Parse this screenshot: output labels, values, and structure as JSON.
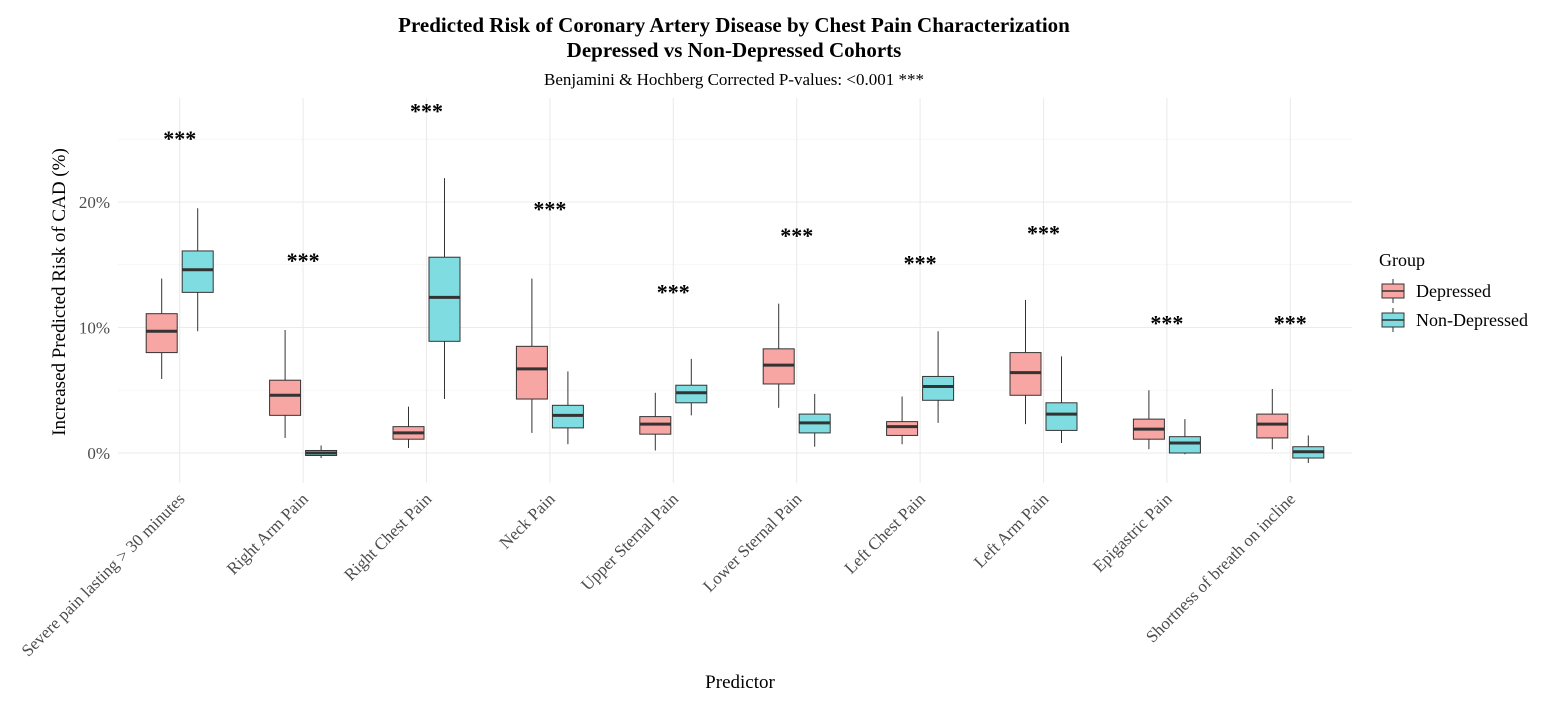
{
  "chart_data": {
    "type": "box",
    "title": "Predicted Risk of Coronary Artery Disease by Chest Pain Characterization",
    "subtitle_line2": "Depressed vs Non-Depressed Cohorts",
    "subtitle": "Benjamini & Hochberg Corrected P-values: <0.001 ***",
    "xlabel": "Predictor",
    "ylabel": "Increased Predicted Risk of CAD (%)",
    "ylim": [
      -2.2,
      28.5
    ],
    "yticks": [
      0,
      10,
      20
    ],
    "ytick_labels": [
      "0%",
      "10%",
      "20%"
    ],
    "grid": true,
    "legend": {
      "title": "Group",
      "position": "right",
      "entries": [
        {
          "name": "Depressed",
          "color": "#f8a6a3"
        },
        {
          "name": "Non-Depressed",
          "color": "#7fdde2"
        }
      ]
    },
    "significance_label": "***",
    "categories": [
      "Severe pain lasting > 30 minutes",
      "Right Arm Pain",
      "Right Chest Pain",
      "Neck Pain",
      "Upper Sternal Pain",
      "Lower Sternal Pain",
      "Left Chest Pain",
      "Left Arm Pain",
      "Epigastric Pain",
      "Shortness of breath on incline"
    ],
    "star_y": [
      25.4,
      15.7,
      27.6,
      19.8,
      13.2,
      17.7,
      15.5,
      17.9,
      10.7,
      10.7
    ],
    "series": [
      {
        "name": "Depressed",
        "color": "#f8a6a3",
        "boxes": [
          {
            "min": 5.9,
            "q1": 8.0,
            "median": 9.7,
            "q3": 11.1,
            "max": 13.9
          },
          {
            "min": 1.2,
            "q1": 3.0,
            "median": 4.6,
            "q3": 5.8,
            "max": 9.8
          },
          {
            "min": 0.4,
            "q1": 1.1,
            "median": 1.6,
            "q3": 2.1,
            "max": 3.7
          },
          {
            "min": 1.6,
            "q1": 4.3,
            "median": 6.7,
            "q3": 8.5,
            "max": 13.9
          },
          {
            "min": 0.2,
            "q1": 1.5,
            "median": 2.3,
            "q3": 2.9,
            "max": 4.8
          },
          {
            "min": 3.6,
            "q1": 5.5,
            "median": 7.0,
            "q3": 8.3,
            "max": 11.9
          },
          {
            "min": 0.7,
            "q1": 1.4,
            "median": 2.1,
            "q3": 2.5,
            "max": 4.5
          },
          {
            "min": 2.3,
            "q1": 4.6,
            "median": 6.4,
            "q3": 8.0,
            "max": 12.2
          },
          {
            "min": 0.3,
            "q1": 1.1,
            "median": 1.9,
            "q3": 2.7,
            "max": 5.0
          },
          {
            "min": 0.3,
            "q1": 1.2,
            "median": 2.3,
            "q3": 3.1,
            "max": 5.1
          }
        ]
      },
      {
        "name": "Non-Depressed",
        "color": "#7fdde2",
        "boxes": [
          {
            "min": 9.7,
            "q1": 12.8,
            "median": 14.6,
            "q3": 16.1,
            "max": 19.5
          },
          {
            "min": -0.4,
            "q1": -0.2,
            "median": 0.0,
            "q3": 0.2,
            "max": 0.6
          },
          {
            "min": 4.3,
            "q1": 8.9,
            "median": 12.4,
            "q3": 15.6,
            "max": 21.9
          },
          {
            "min": 0.7,
            "q1": 2.0,
            "median": 3.0,
            "q3": 3.8,
            "max": 6.5
          },
          {
            "min": 3.0,
            "q1": 4.0,
            "median": 4.8,
            "q3": 5.4,
            "max": 7.5
          },
          {
            "min": 0.5,
            "q1": 1.6,
            "median": 2.4,
            "q3": 3.1,
            "max": 4.7
          },
          {
            "min": 2.4,
            "q1": 4.2,
            "median": 5.3,
            "q3": 6.1,
            "max": 9.7
          },
          {
            "min": 0.8,
            "q1": 1.8,
            "median": 3.1,
            "q3": 4.0,
            "max": 7.7
          },
          {
            "min": -0.1,
            "q1": 0.0,
            "median": 0.8,
            "q3": 1.3,
            "max": 2.7
          },
          {
            "min": -0.8,
            "q1": -0.4,
            "median": 0.1,
            "q3": 0.5,
            "max": 1.4
          }
        ]
      }
    ]
  }
}
